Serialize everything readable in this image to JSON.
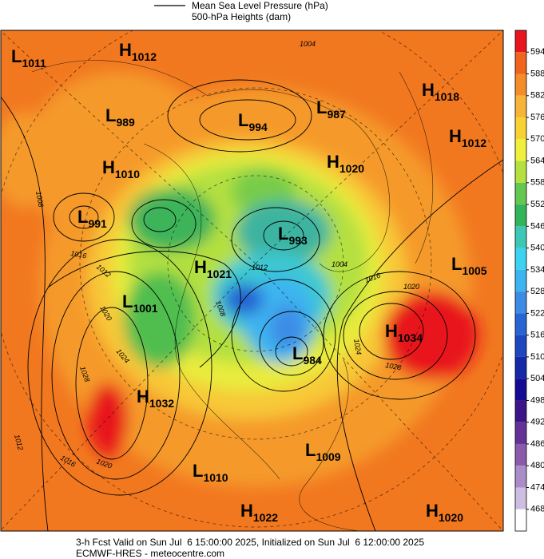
{
  "legend": [
    "Mean Sea Level Pressure (hPa)",
    "500-hPa Heights (dam)"
  ],
  "centers": [
    {
      "letter": "L",
      "value": "1011"
    },
    {
      "letter": "H",
      "value": "1012"
    },
    {
      "letter": "L",
      "value": "989"
    },
    {
      "letter": "L",
      "value": "994"
    },
    {
      "letter": "L",
      "value": "987"
    },
    {
      "letter": "H",
      "value": "1018"
    },
    {
      "letter": "H",
      "value": "1012"
    },
    {
      "letter": "H",
      "value": "1010"
    },
    {
      "letter": "H",
      "value": "1020"
    },
    {
      "letter": "L",
      "value": "991"
    },
    {
      "letter": "L",
      "value": "993"
    },
    {
      "letter": "H",
      "value": "1021"
    },
    {
      "letter": "L",
      "value": "1005"
    },
    {
      "letter": "L",
      "value": "1001"
    },
    {
      "letter": "H",
      "value": "1034"
    },
    {
      "letter": "L",
      "value": "984"
    },
    {
      "letter": "H",
      "value": "1032"
    },
    {
      "letter": "L",
      "value": "1009"
    },
    {
      "letter": "L",
      "value": "1010"
    },
    {
      "letter": "H",
      "value": "1022"
    },
    {
      "letter": "H",
      "value": "1020"
    }
  ],
  "contour_labels": [
    "1004",
    "1008",
    "1016",
    "1012",
    "1020",
    "1024",
    "1028",
    "1012",
    "1016",
    "1020",
    "1024",
    "1028",
    "1020",
    "1016",
    "1004",
    "1012",
    "1008"
  ],
  "colorbar": {
    "ticks": [
      594,
      588,
      582,
      576,
      570,
      564,
      558,
      552,
      546,
      540,
      534,
      528,
      522,
      516,
      510,
      504,
      498,
      492,
      486,
      480,
      474,
      468
    ],
    "colors": [
      "#e8141e",
      "#f0641e",
      "#f48c28",
      "#f8b438",
      "#f8d232",
      "#eef03c",
      "#b4e040",
      "#64c850",
      "#32b45a",
      "#3cc8b4",
      "#3cd2f0",
      "#3cb4f0",
      "#3c8ce6",
      "#2864d2",
      "#1e46be",
      "#1428a8",
      "#140a96",
      "#3c1488",
      "#643296",
      "#8c5aaa",
      "#aa8cc8",
      "#cdbee1",
      "#ffffff"
    ]
  },
  "footer": [
    "3-h Fcst Valid on Sun Jul  6 15:00:00 2025, Initialized on Sun Jul  6 12:00:00 2025",
    "ECMWF-HRES - meteocentre.com"
  ]
}
